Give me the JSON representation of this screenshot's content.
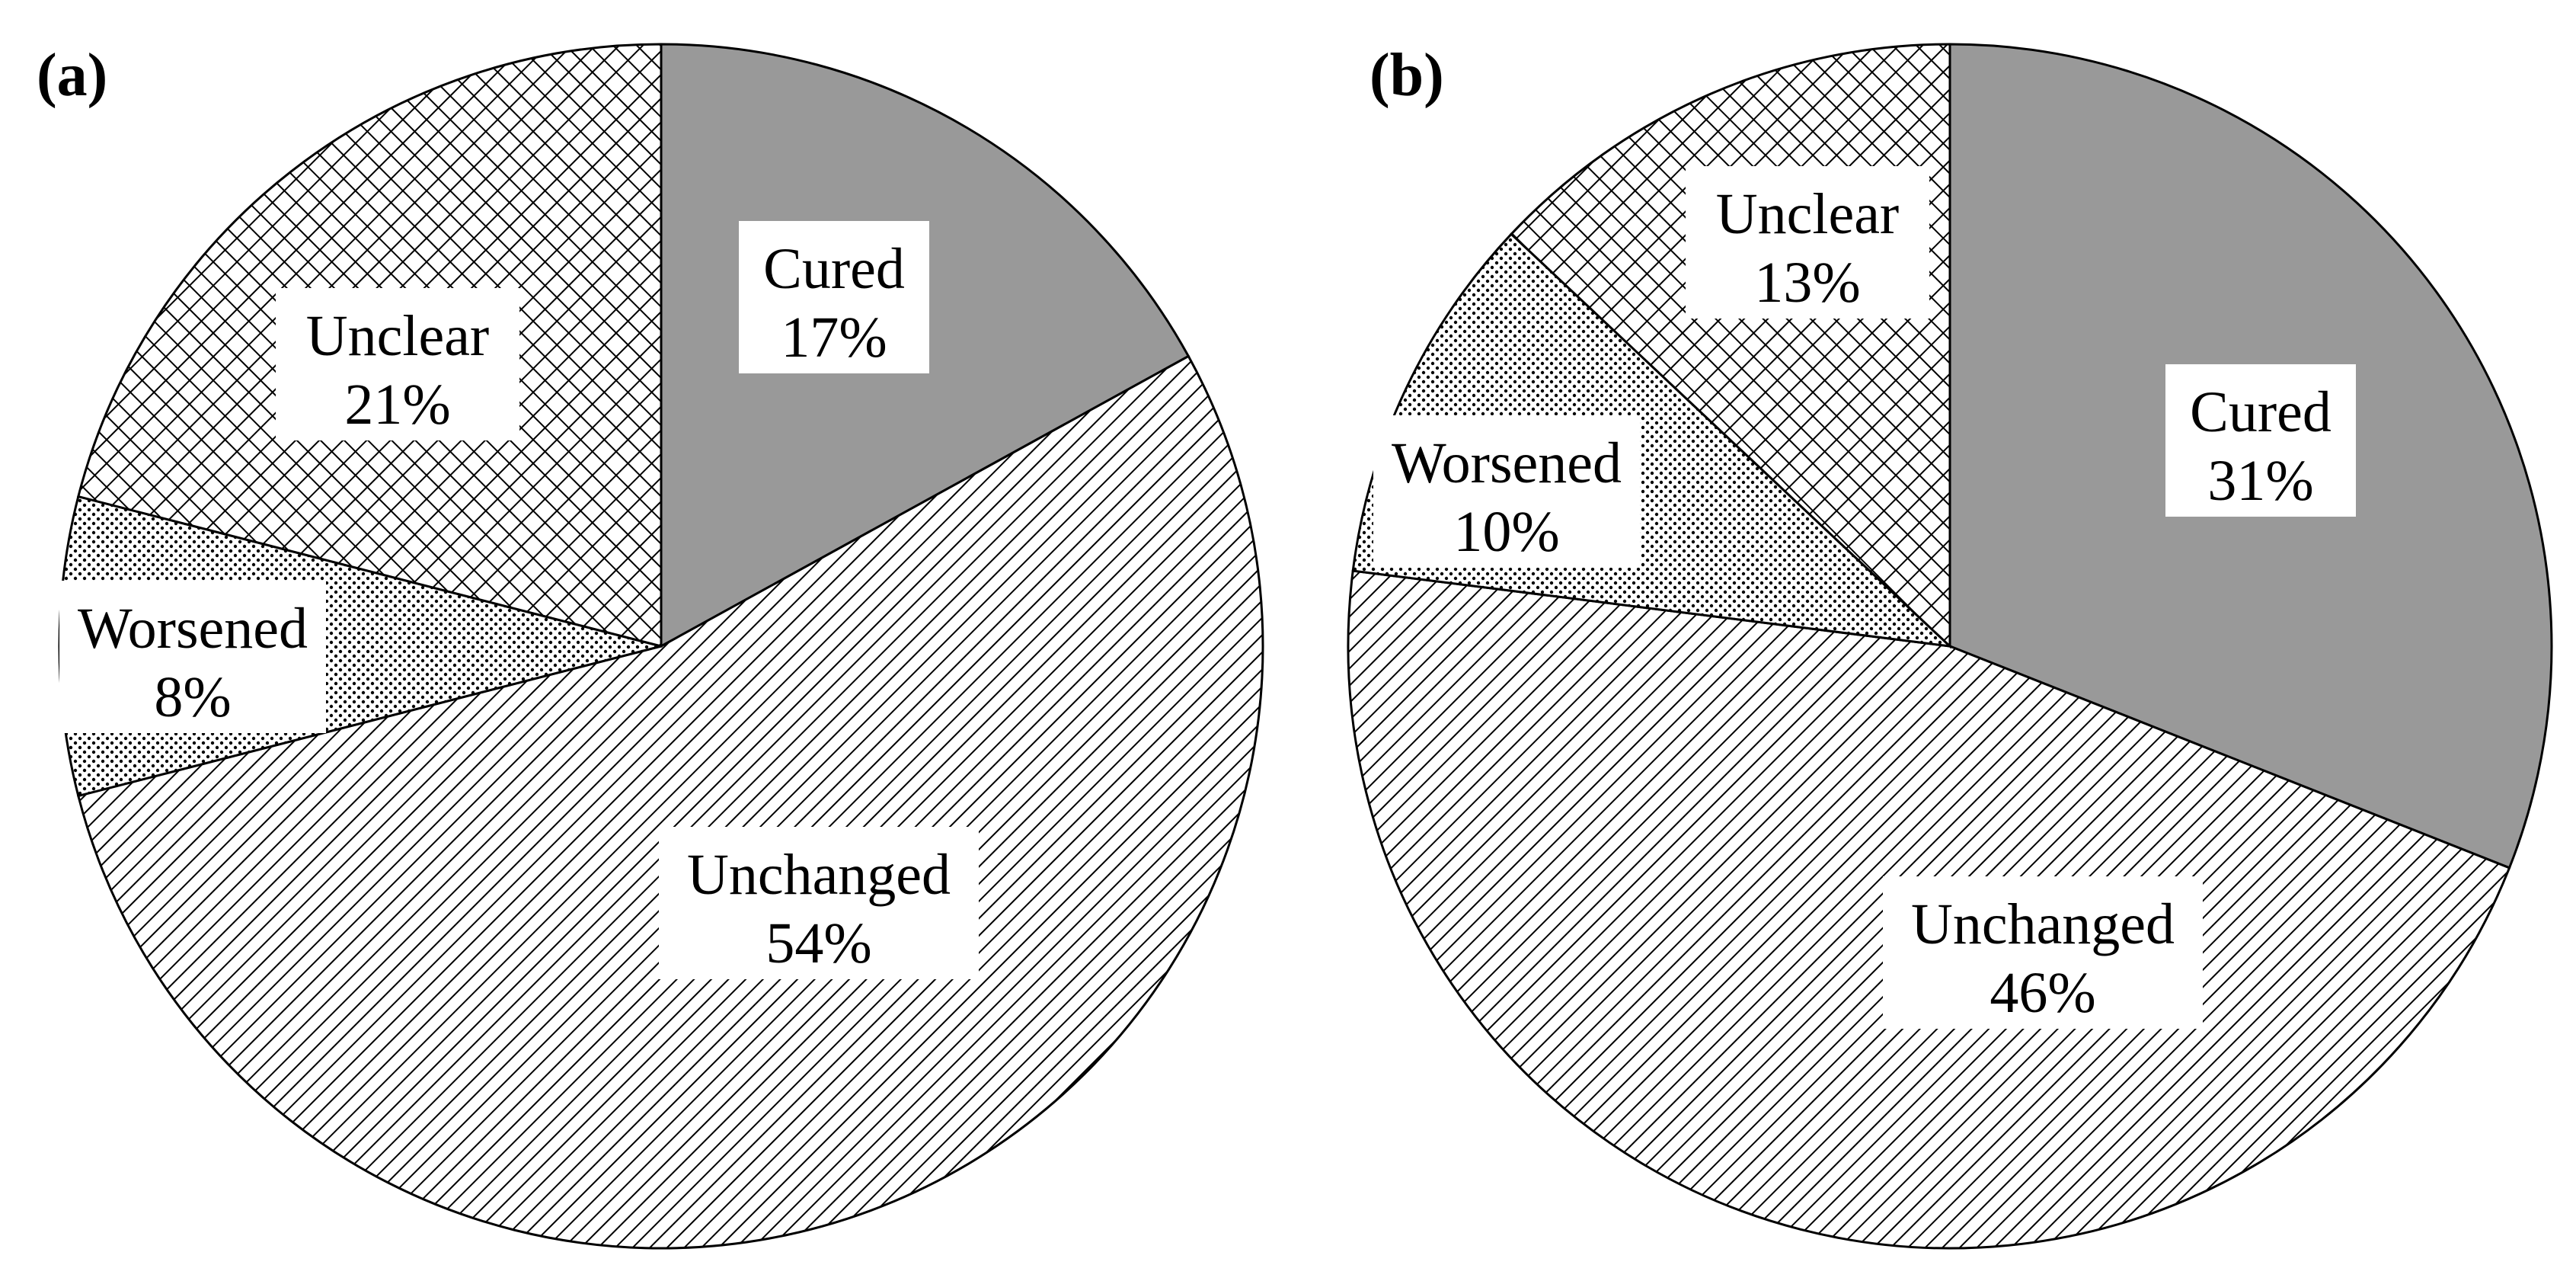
{
  "chart_data": [
    {
      "type": "pie",
      "panel_label": "(a)",
      "start_angle_deg": 0,
      "direction": "clockwise",
      "slices": [
        {
          "label": "Cured",
          "value": 17,
          "value_label": "17%",
          "fill": "solid",
          "color": "#999999"
        },
        {
          "label": "Unchanged",
          "value": 54,
          "value_label": "54%",
          "fill": "diagonal-hatch"
        },
        {
          "label": "Worsened",
          "value": 8,
          "value_label": "8%",
          "fill": "dots"
        },
        {
          "label": "Unclear",
          "value": 21,
          "value_label": "21%",
          "fill": "crosshatch"
        }
      ]
    },
    {
      "type": "pie",
      "panel_label": "(b)",
      "start_angle_deg": 0,
      "direction": "clockwise",
      "slices": [
        {
          "label": "Cured",
          "value": 31,
          "value_label": "31%",
          "fill": "solid",
          "color": "#999999"
        },
        {
          "label": "Unchanged",
          "value": 46,
          "value_label": "46%",
          "fill": "diagonal-hatch"
        },
        {
          "label": "Worsened",
          "value": 10,
          "value_label": "10%",
          "fill": "dots"
        },
        {
          "label": "Unclear",
          "value": 13,
          "value_label": "13%",
          "fill": "crosshatch"
        }
      ]
    }
  ]
}
